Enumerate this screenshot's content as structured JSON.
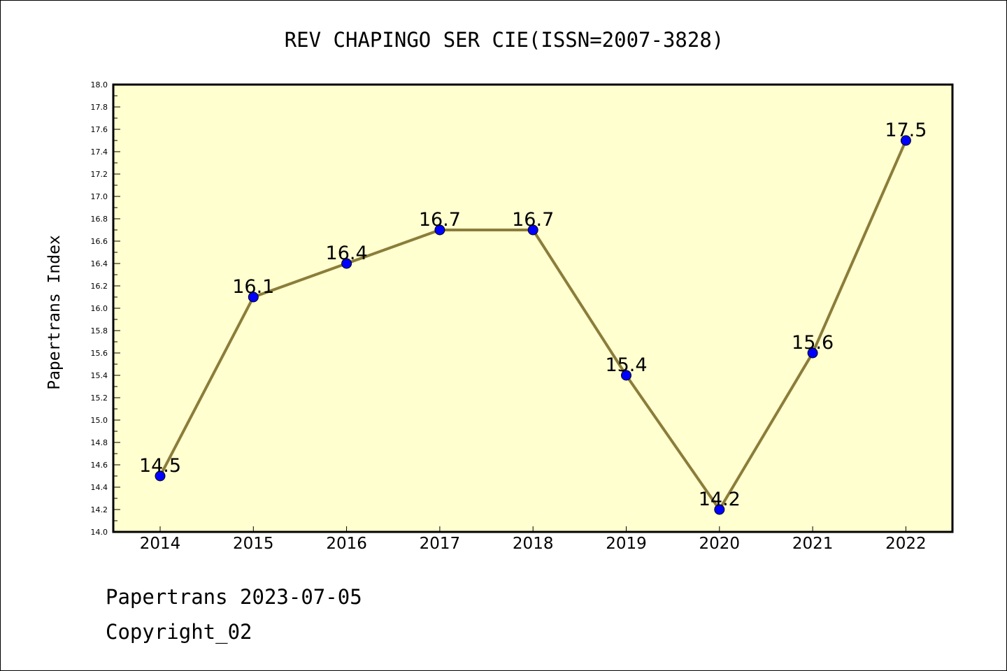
{
  "footer": {
    "line1": "Papertrans 2023-07-05",
    "line2": "Copyright_02"
  },
  "colors": {
    "plot_background": "#ffffd0",
    "line": "#8b7d3a",
    "marker": "#0000ff"
  },
  "chart_data": {
    "type": "line",
    "title": "REV CHAPINGO SER CIE(ISSN=2007-3828)",
    "xlabel": "",
    "ylabel": "Papertrans Index",
    "categories": [
      "2014",
      "2015",
      "2016",
      "2017",
      "2018",
      "2019",
      "2020",
      "2021",
      "2022"
    ],
    "series": [
      {
        "values": [
          14.5,
          16.1,
          16.4,
          16.7,
          16.7,
          15.4,
          14.2,
          15.6,
          17.5
        ],
        "data_labels": [
          "14.5",
          "16.1",
          "16.4",
          "16.7",
          "16.7",
          "15.4",
          "14.2",
          "15.6",
          "17.5"
        ]
      }
    ],
    "ylim": [
      14.0,
      18.0
    ],
    "yticks": [
      "14.0",
      "14.2",
      "14.4",
      "14.6",
      "14.8",
      "15.0",
      "15.2",
      "15.4",
      "15.6",
      "15.8",
      "16.0",
      "16.2",
      "16.4",
      "16.6",
      "16.8",
      "17.0",
      "17.2",
      "17.4",
      "17.6",
      "17.8",
      "18.0"
    ],
    "grid": false,
    "legend": "none"
  }
}
